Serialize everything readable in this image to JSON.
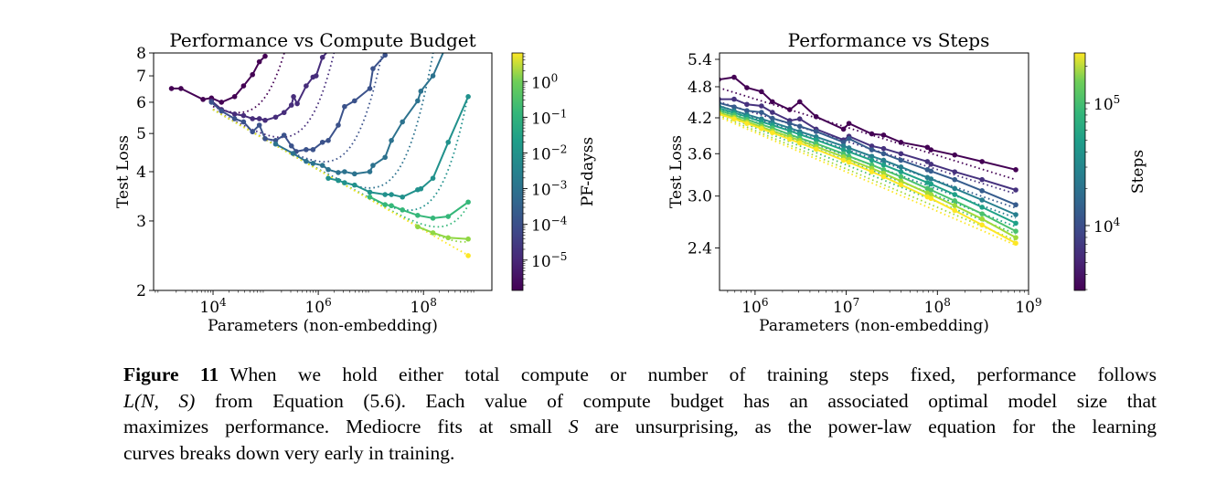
{
  "chart_data": [
    {
      "type": "line",
      "title": "Performance vs Compute Budget",
      "xlabel": "Parameters (non-embedding)",
      "ylabel": "Test Loss",
      "xscale": "log",
      "yscale": "log",
      "xlim_log10": [
        2.87,
        9.3
      ],
      "ylim": [
        2,
        8
      ],
      "xticks": [
        {
          "base": "10",
          "exp": "4",
          "log10": 4
        },
        {
          "base": "10",
          "exp": "6",
          "log10": 6
        },
        {
          "base": "10",
          "exp": "8",
          "log10": 8
        }
      ],
      "yticks": [
        {
          "label": "2",
          "v": 2
        },
        {
          "label": "3",
          "v": 3
        },
        {
          "label": "4",
          "v": 4
        },
        {
          "label": "5",
          "v": 5
        },
        {
          "label": "6",
          "v": 6
        },
        {
          "label": "7",
          "v": 7
        },
        {
          "label": "8",
          "v": 8
        }
      ],
      "colorbar": {
        "label": "PF-dayss",
        "range_log10": [
          -5.85,
          0.8
        ],
        "ticks": [
          {
            "base": "10",
            "exp": "0",
            "log10": 0
          },
          {
            "base": "10",
            "exp": "−1",
            "log10": -1
          },
          {
            "base": "10",
            "exp": "−2",
            "log10": -2
          },
          {
            "base": "10",
            "exp": "−3",
            "log10": -3
          },
          {
            "base": "10",
            "exp": "−4",
            "log10": -4
          },
          {
            "base": "10",
            "exp": "−5",
            "log10": -5
          }
        ]
      },
      "fit": {
        "L_at_1e4": 5.75,
        "exponent": -0.0764,
        "log10_N_start": 4.0,
        "log10_N_end": 8.87
      },
      "series": [
        {
          "color": "#440154",
          "knee_log10_N": 5.45,
          "log10_N": [
            3.21,
            3.39,
            3.81,
            3.97,
            4.16,
            4.41,
            4.58,
            4.75,
            4.88,
            4.99
          ],
          "loss": [
            6.5,
            6.5,
            6.1,
            6.15,
            6.0,
            6.2,
            6.6,
            7.05,
            7.6,
            7.85
          ]
        },
        {
          "color": "#472d7b",
          "knee_log10_N": 6.27,
          "log10_N": [
            3.97,
            4.16,
            4.41,
            4.58,
            4.75,
            4.88,
            4.99,
            5.19,
            5.35,
            5.49,
            5.53,
            5.6,
            5.77,
            5.9,
            5.96,
            6.08,
            6.19
          ],
          "loss": [
            6.05,
            5.75,
            5.6,
            5.55,
            5.45,
            5.45,
            5.4,
            5.5,
            5.65,
            5.9,
            6.2,
            5.95,
            6.6,
            6.95,
            7.0,
            7.8,
            8.1
          ]
        },
        {
          "color": "#3b528b",
          "knee_log10_N": 7.08,
          "log10_N": [
            3.97,
            4.16,
            4.41,
            4.58,
            4.75,
            4.88,
            4.99,
            5.19,
            5.35,
            5.49,
            5.58,
            5.77,
            5.9,
            6.08,
            6.19,
            6.38,
            6.5,
            6.69,
            6.98,
            7.04,
            7.27
          ],
          "loss": [
            6.0,
            5.7,
            5.45,
            5.35,
            5.05,
            5.25,
            4.85,
            4.8,
            4.95,
            4.65,
            4.5,
            4.55,
            4.55,
            4.75,
            4.8,
            5.25,
            5.85,
            6.05,
            6.5,
            7.3,
            7.9
          ]
        },
        {
          "color": "#2c728e",
          "knee_log10_N": 7.95,
          "log10_N": [
            5.19,
            5.52,
            5.77,
            5.9,
            6.08,
            6.19,
            6.38,
            6.5,
            6.69,
            6.98,
            7.04,
            7.27,
            7.39,
            7.6,
            7.89,
            7.95,
            8.18,
            8.39
          ],
          "loss": [
            4.7,
            4.45,
            4.25,
            4.2,
            4.15,
            4.05,
            3.98,
            4.0,
            3.95,
            4.0,
            4.15,
            4.35,
            4.8,
            5.35,
            6.05,
            6.4,
            7.0,
            8.1
          ]
        },
        {
          "color": "#21918c",
          "knee_log10_N": 8.69,
          "log10_N": [
            6.19,
            6.38,
            6.5,
            6.69,
            6.98,
            7.27,
            7.39,
            7.6,
            7.89,
            7.95,
            8.18,
            8.47,
            8.85
          ],
          "loss": [
            3.85,
            3.8,
            3.75,
            3.7,
            3.55,
            3.5,
            3.5,
            3.45,
            3.6,
            3.62,
            3.85,
            4.75,
            6.2
          ]
        },
        {
          "color": "#35b779",
          "knee_log10_N": 9.24,
          "log10_N": [
            6.98,
            7.27,
            7.39,
            7.6,
            7.89,
            8.18,
            8.47,
            8.85
          ],
          "loss": [
            3.45,
            3.3,
            3.28,
            3.2,
            3.1,
            3.05,
            3.08,
            3.35
          ]
        },
        {
          "color": "#90d743",
          "knee_log10_N": 9.74,
          "log10_N": [
            7.89,
            8.18,
            8.47,
            8.85
          ],
          "loss": [
            2.9,
            2.8,
            2.72,
            2.7
          ]
        },
        {
          "color": "#fde725",
          "knee_log10_N": 11.0,
          "log10_N": [
            8.85
          ],
          "loss": [
            2.45
          ]
        }
      ]
    },
    {
      "type": "line",
      "title": "Performance vs Steps",
      "xlabel": "Parameters (non-embedding)",
      "ylabel": "Test Loss",
      "xscale": "log",
      "yscale": "log",
      "xlim_log10": [
        5.61,
        9.0
      ],
      "ylim": [
        2.0,
        5.55
      ],
      "xticks": [
        {
          "base": "10",
          "exp": "6",
          "log10": 6
        },
        {
          "base": "10",
          "exp": "7",
          "log10": 7
        },
        {
          "base": "10",
          "exp": "8",
          "log10": 8
        },
        {
          "base": "10",
          "exp": "9",
          "log10": 9
        }
      ],
      "yticks": [
        {
          "label": "2.4",
          "v": 2.4
        },
        {
          "label": "3.0",
          "v": 3.0
        },
        {
          "label": "3.6",
          "v": 3.6
        },
        {
          "label": "4.2",
          "v": 4.2
        },
        {
          "label": "4.8",
          "v": 4.8
        },
        {
          "label": "5.4",
          "v": 5.4
        }
      ],
      "colorbar": {
        "label": "Steps",
        "range_log10": [
          3.47,
          5.41
        ],
        "ticks": [
          {
            "base": "10",
            "exp": "5",
            "log10": 5
          },
          {
            "base": "10",
            "exp": "4",
            "log10": 4
          }
        ]
      },
      "log10_N": [
        5.6,
        5.77,
        5.91,
        6.07,
        6.19,
        6.38,
        6.49,
        6.67,
        6.97,
        7.03,
        7.28,
        7.41,
        7.6,
        7.89,
        7.93,
        8.19,
        8.49,
        8.86
      ],
      "series": [
        {
          "color": "#440154",
          "fit": [
            4.78,
            3.22
          ],
          "loss": [
            4.95,
            5.0,
            4.78,
            4.7,
            4.5,
            4.35,
            4.5,
            4.22,
            4.0,
            4.1,
            3.92,
            3.9,
            3.78,
            3.7,
            3.66,
            3.58,
            3.48,
            3.36
          ]
        },
        {
          "color": "#46327e",
          "fit": [
            4.5,
            3.03
          ],
          "loss": [
            4.55,
            4.55,
            4.45,
            4.42,
            4.3,
            4.15,
            4.18,
            4.0,
            3.82,
            3.88,
            3.72,
            3.68,
            3.6,
            3.48,
            3.44,
            3.33,
            3.22,
            3.08
          ]
        },
        {
          "color": "#365c8d",
          "fit": [
            4.43,
            2.85
          ],
          "loss": [
            4.48,
            4.4,
            4.33,
            4.3,
            4.19,
            4.1,
            4.05,
            3.96,
            3.78,
            3.84,
            3.66,
            3.6,
            3.5,
            3.36,
            3.34,
            3.22,
            3.07,
            2.89
          ]
        },
        {
          "color": "#277f8e",
          "fit": [
            4.37,
            2.73
          ],
          "loss": [
            4.42,
            4.33,
            4.26,
            4.18,
            4.12,
            4.02,
            3.96,
            3.87,
            3.72,
            3.69,
            3.56,
            3.5,
            3.4,
            3.25,
            3.23,
            3.1,
            2.95,
            2.77
          ]
        },
        {
          "color": "#1fa187",
          "fit": [
            4.33,
            2.63
          ],
          "loss": [
            4.38,
            4.29,
            4.22,
            4.13,
            4.07,
            3.97,
            3.91,
            3.82,
            3.66,
            3.63,
            3.5,
            3.43,
            3.33,
            3.18,
            3.16,
            3.02,
            2.86,
            2.67
          ]
        },
        {
          "color": "#4ac16d",
          "fit": [
            4.29,
            2.55
          ],
          "loss": [
            4.34,
            4.25,
            4.17,
            4.08,
            4.02,
            3.91,
            3.85,
            3.76,
            3.6,
            3.56,
            3.43,
            3.36,
            3.26,
            3.1,
            3.08,
            2.94,
            2.78,
            2.58
          ]
        },
        {
          "color": "#a0da39",
          "fit": [
            4.25,
            2.48
          ],
          "loss": [
            4.3,
            4.21,
            4.13,
            4.04,
            3.97,
            3.87,
            3.81,
            3.71,
            3.55,
            3.51,
            3.38,
            3.31,
            3.2,
            3.04,
            3.02,
            2.88,
            2.72,
            2.51
          ]
        },
        {
          "color": "#fde725",
          "fit": [
            4.22,
            2.43
          ],
          "loss": [
            4.27,
            4.18,
            4.1,
            4.01,
            3.94,
            3.83,
            3.77,
            3.67,
            3.5,
            3.47,
            3.33,
            3.26,
            3.15,
            2.99,
            2.97,
            2.82,
            2.65,
            2.45
          ]
        }
      ]
    }
  ],
  "caption": {
    "label": "Figure 11",
    "line1": "When we hold either total compute or number of training steps fixed, performance follows",
    "math1": "L(N, S)",
    "line2": " from Equation (5.6).  Each value of compute budget has an associated optimal model size that",
    "line3a": "maximizes performance. Mediocre fits at small ",
    "math2": "S",
    "line3b": " are unsurprising, as the power-law equation for the learning",
    "line4": "curves breaks down very early in training."
  }
}
